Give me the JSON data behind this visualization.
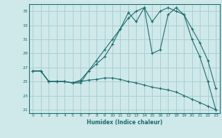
{
  "xlabel": "Humidex (Indice chaleur)",
  "bg_color": "#cfe8ea",
  "grid_color": "#a8cfd1",
  "line_color": "#1a6b6b",
  "xlim": [
    -0.5,
    23.5
  ],
  "ylim": [
    20.5,
    36.0
  ],
  "xticks": [
    0,
    1,
    2,
    3,
    4,
    5,
    6,
    7,
    8,
    9,
    10,
    11,
    12,
    13,
    14,
    15,
    16,
    17,
    18,
    19,
    20,
    21,
    22,
    23
  ],
  "yticks": [
    21,
    23,
    25,
    27,
    29,
    31,
    33,
    35
  ],
  "series1_x": [
    0,
    1,
    2,
    3,
    4,
    5,
    6,
    7,
    8,
    9,
    10,
    11,
    12,
    13,
    14,
    15,
    16,
    17,
    18,
    19,
    20,
    21,
    22,
    23
  ],
  "series1_y": [
    26.5,
    26.5,
    25.0,
    25.0,
    25.0,
    24.8,
    24.8,
    26.5,
    27.5,
    28.5,
    30.3,
    32.5,
    34.8,
    33.5,
    35.5,
    29.0,
    29.5,
    34.5,
    35.5,
    34.5,
    31.0,
    28.5,
    25.0,
    21.0
  ],
  "series2_x": [
    0,
    1,
    2,
    3,
    4,
    5,
    6,
    7,
    8,
    9,
    10,
    11,
    12,
    13,
    14,
    15,
    16,
    17,
    18,
    19,
    20,
    21,
    22,
    23
  ],
  "series2_y": [
    26.5,
    26.5,
    25.0,
    25.0,
    25.0,
    24.8,
    25.2,
    26.5,
    28.0,
    29.5,
    31.0,
    32.5,
    34.0,
    35.0,
    35.5,
    33.5,
    35.0,
    35.5,
    35.0,
    34.5,
    32.5,
    30.5,
    28.0,
    24.0
  ],
  "series3_x": [
    0,
    1,
    2,
    3,
    4,
    5,
    6,
    7,
    8,
    9,
    10,
    11,
    12,
    13,
    14,
    15,
    16,
    17,
    18,
    19,
    20,
    21,
    22,
    23
  ],
  "series3_y": [
    26.5,
    26.5,
    25.0,
    25.0,
    25.0,
    24.8,
    25.0,
    25.2,
    25.3,
    25.5,
    25.5,
    25.3,
    25.0,
    24.8,
    24.5,
    24.2,
    24.0,
    23.8,
    23.5,
    23.0,
    22.5,
    22.0,
    21.5,
    21.0
  ]
}
